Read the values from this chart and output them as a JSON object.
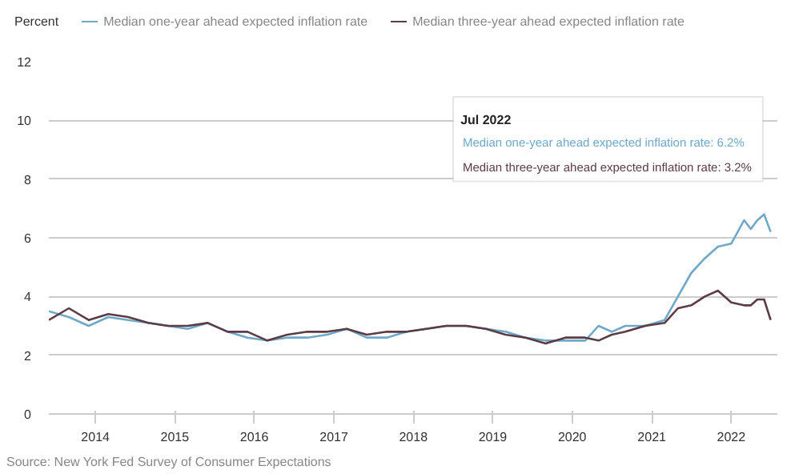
{
  "chart_data": {
    "type": "line",
    "ylabel": "Percent",
    "x": [
      "2013-06",
      "2013-09",
      "2013-12",
      "2014-03",
      "2014-06",
      "2014-09",
      "2014-12",
      "2015-03",
      "2015-06",
      "2015-09",
      "2015-12",
      "2016-03",
      "2016-06",
      "2016-09",
      "2016-12",
      "2017-03",
      "2017-06",
      "2017-09",
      "2017-12",
      "2018-03",
      "2018-06",
      "2018-09",
      "2018-12",
      "2019-03",
      "2019-06",
      "2019-09",
      "2019-12",
      "2020-03",
      "2020-05",
      "2020-07",
      "2020-09",
      "2020-12",
      "2021-03",
      "2021-05",
      "2021-07",
      "2021-09",
      "2021-11",
      "2022-01",
      "2022-03",
      "2022-04",
      "2022-05",
      "2022-06",
      "2022-07"
    ],
    "series": [
      {
        "name": "Median one-year ahead expected inflation rate",
        "color": "#6fa8c8",
        "values": [
          3.5,
          3.3,
          3.0,
          3.3,
          3.2,
          3.1,
          3.0,
          2.9,
          3.1,
          2.8,
          2.6,
          2.5,
          2.6,
          2.6,
          2.7,
          2.9,
          2.6,
          2.6,
          2.8,
          2.9,
          3.0,
          3.0,
          2.9,
          2.8,
          2.6,
          2.5,
          2.5,
          2.5,
          3.0,
          2.8,
          3.0,
          3.0,
          3.2,
          4.0,
          4.8,
          5.3,
          5.7,
          5.8,
          6.6,
          6.3,
          6.6,
          6.8,
          6.2
        ]
      },
      {
        "name": "Median three-year ahead expected inflation rate",
        "color": "#5b3b44",
        "values": [
          3.2,
          3.6,
          3.2,
          3.4,
          3.3,
          3.1,
          3.0,
          3.0,
          3.1,
          2.8,
          2.8,
          2.5,
          2.7,
          2.8,
          2.8,
          2.9,
          2.7,
          2.8,
          2.8,
          2.9,
          3.0,
          3.0,
          2.9,
          2.7,
          2.6,
          2.4,
          2.6,
          2.6,
          2.5,
          2.7,
          2.8,
          3.0,
          3.1,
          3.6,
          3.7,
          4.0,
          4.2,
          3.8,
          3.7,
          3.7,
          3.9,
          3.9,
          3.2
        ]
      }
    ],
    "xlim": [
      "2013-06",
      "2022-08"
    ],
    "xticks": [
      "2014",
      "2015",
      "2016",
      "2017",
      "2018",
      "2019",
      "2020",
      "2021",
      "2022"
    ],
    "ylim": [
      0,
      12
    ],
    "yticks": [
      0,
      2,
      4,
      6,
      8,
      10,
      12
    ],
    "grid": "y",
    "legend": "top",
    "marker": "none",
    "line_style": "solid",
    "annotations": [
      "Jul 2022",
      "Median one-year ahead expected inflation rate: 6.2%",
      "Median three-year ahead expected inflation rate: 3.2%",
      "Source: New York Fed Survey of Consumer Expectations"
    ]
  }
}
